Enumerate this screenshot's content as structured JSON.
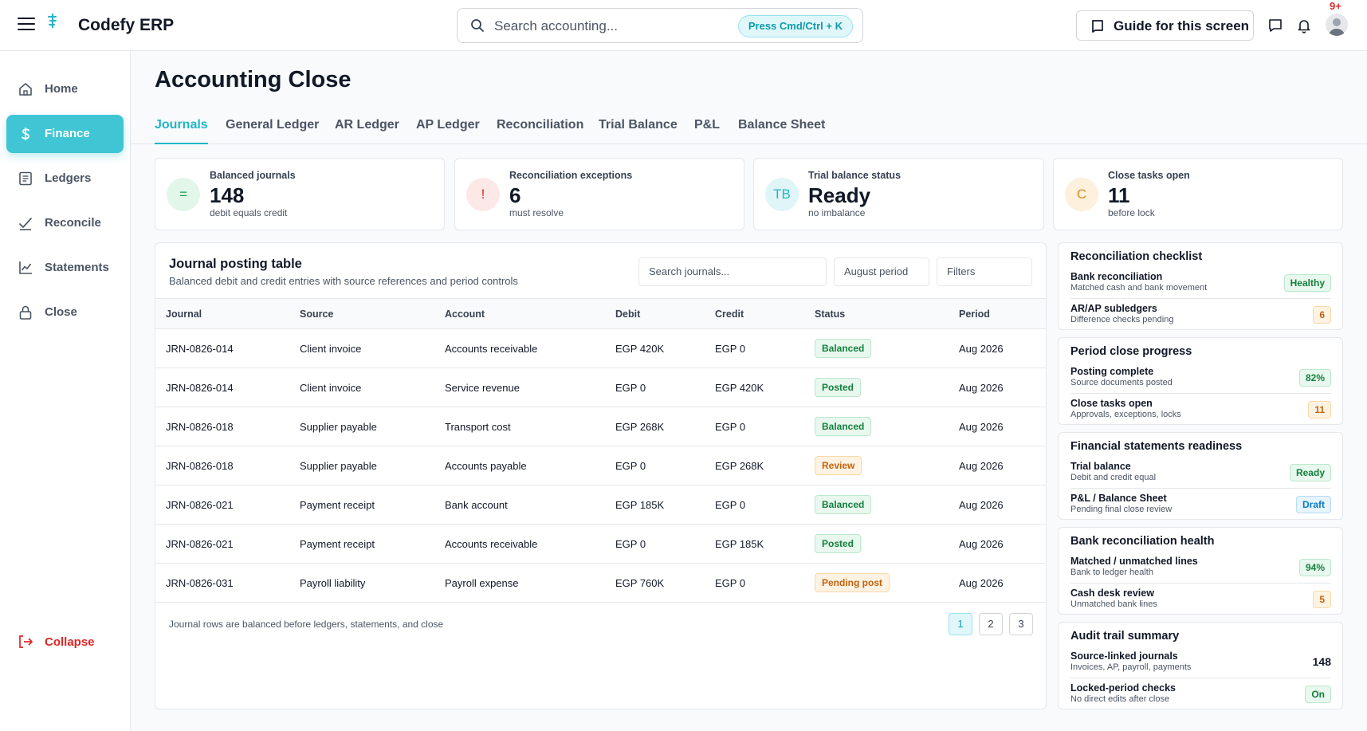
{
  "app": {
    "name": "Codefy ERP"
  },
  "search": {
    "placeholder": "Search accounting...",
    "shortcut": "Press Cmd/Ctrl + K"
  },
  "header": {
    "guide_label": "Guide for this screen",
    "notifications_count": "9+"
  },
  "sidebar": {
    "items": [
      {
        "label": "Home",
        "icon": "home-icon"
      },
      {
        "label": "Finance",
        "icon": "dollar-icon",
        "active": true
      },
      {
        "label": "Ledgers",
        "icon": "ledger-icon"
      },
      {
        "label": "Reconcile",
        "icon": "reconcile-icon"
      },
      {
        "label": "Statements",
        "icon": "chart-line-icon"
      },
      {
        "label": "Close",
        "icon": "lock-icon"
      }
    ],
    "collapse_label": "Collapse"
  },
  "page": {
    "title": "Accounting Close"
  },
  "tabs": [
    {
      "label": "Journals",
      "active": true
    },
    {
      "label": "General Ledger"
    },
    {
      "label": "AR Ledger"
    },
    {
      "label": "AP Ledger"
    },
    {
      "label": "Reconciliation"
    },
    {
      "label": "Trial Balance"
    },
    {
      "label": "P&L"
    },
    {
      "label": "Balance Sheet"
    }
  ],
  "kpis": [
    {
      "icon_text": "=",
      "label": "Balanced journals",
      "value": "148",
      "sub": "debit equals credit",
      "color": "#16a34a",
      "bg": "#e3f6ea"
    },
    {
      "icon_text": "!",
      "label": "Reconciliation exceptions",
      "value": "6",
      "sub": "must resolve",
      "color": "#dc2626",
      "bg": "#fde8e8"
    },
    {
      "icon_text": "TB",
      "label": "Trial balance status",
      "value": "Ready",
      "sub": "no imbalance",
      "color": "#22b5c6",
      "bg": "#e0f5f8"
    },
    {
      "icon_text": "C",
      "label": "Close tasks open",
      "value": "11",
      "sub": "before lock",
      "color": "#e08a1e",
      "bg": "#fdf0dc"
    }
  ],
  "journal_table": {
    "title": "Journal posting table",
    "subtitle": "Balanced debit and credit entries with source references and period controls",
    "search_placeholder": "Search journals...",
    "period_filter": "August period",
    "filters_label": "Filters",
    "columns": [
      "Journal",
      "Source",
      "Account",
      "Debit",
      "Credit",
      "Status",
      "Period"
    ],
    "rows": [
      {
        "journal": "JRN-0826-014",
        "source": "Client invoice",
        "account": "Accounts receivable",
        "debit": "EGP 420K",
        "credit": "EGP 0",
        "status": "Balanced",
        "period": "Aug 2026"
      },
      {
        "journal": "JRN-0826-014",
        "source": "Client invoice",
        "account": "Service revenue",
        "debit": "EGP 0",
        "credit": "EGP 420K",
        "status": "Posted",
        "period": "Aug 2026"
      },
      {
        "journal": "JRN-0826-018",
        "source": "Supplier payable",
        "account": "Transport cost",
        "debit": "EGP 268K",
        "credit": "EGP 0",
        "status": "Balanced",
        "period": "Aug 2026"
      },
      {
        "journal": "JRN-0826-018",
        "source": "Supplier payable",
        "account": "Accounts payable",
        "debit": "EGP 0",
        "credit": "EGP 268K",
        "status": "Review",
        "period": "Aug 2026"
      },
      {
        "journal": "JRN-0826-021",
        "source": "Payment receipt",
        "account": "Bank account",
        "debit": "EGP 185K",
        "credit": "EGP 0",
        "status": "Balanced",
        "period": "Aug 2026"
      },
      {
        "journal": "JRN-0826-021",
        "source": "Payment receipt",
        "account": "Accounts receivable",
        "debit": "EGP 0",
        "credit": "EGP 185K",
        "status": "Posted",
        "period": "Aug 2026"
      },
      {
        "journal": "JRN-0826-031",
        "source": "Payroll liability",
        "account": "Payroll expense",
        "debit": "EGP 760K",
        "credit": "EGP 0",
        "status": "Pending post",
        "period": "Aug 2026"
      }
    ],
    "footer": "Journal rows are balanced before ledgers, statements, and close",
    "pages": [
      "1",
      "2",
      "3"
    ]
  },
  "panels": [
    {
      "title": "Reconciliation checklist",
      "rows": [
        {
          "main": "Bank reconciliation",
          "sub": "Matched cash and bank movement",
          "badge": "Healthy",
          "tone": "green"
        },
        {
          "main": "AR/AP subledgers",
          "sub": "Difference checks pending",
          "badge": "6",
          "tone": "amber"
        }
      ]
    },
    {
      "title": "Period close progress",
      "rows": [
        {
          "main": "Posting complete",
          "sub": "Source documents posted",
          "badge": "82%",
          "tone": "green"
        },
        {
          "main": "Close tasks open",
          "sub": "Approvals, exceptions, locks",
          "badge": "11",
          "tone": "amber"
        }
      ]
    },
    {
      "title": "Financial statements readiness",
      "rows": [
        {
          "main": "Trial balance",
          "sub": "Debit and credit equal",
          "badge": "Ready",
          "tone": "green"
        },
        {
          "main": "P&L / Balance Sheet",
          "sub": "Pending final close review",
          "badge": "Draft",
          "tone": "blue"
        }
      ]
    },
    {
      "title": "Bank reconciliation health",
      "rows": [
        {
          "main": "Matched / unmatched lines",
          "sub": "Bank to ledger health",
          "badge": "94%",
          "tone": "green"
        },
        {
          "main": "Cash desk review",
          "sub": "Unmatched bank lines",
          "badge": "5",
          "tone": "amber"
        }
      ]
    },
    {
      "title": "Audit trail summary",
      "rows": [
        {
          "main": "Source-linked journals",
          "sub": "Invoices, AP, payroll, payments",
          "badge": "148",
          "tone": "plain"
        },
        {
          "main": "Locked-period checks",
          "sub": "No direct edits after close",
          "badge": "On",
          "tone": "green"
        }
      ]
    }
  ],
  "colors": {
    "accent": "#22b5c6",
    "sidebar_active": "#3fc5d4",
    "danger": "#dc2626",
    "success": "#16a34a",
    "warning": "#e08a1e"
  }
}
